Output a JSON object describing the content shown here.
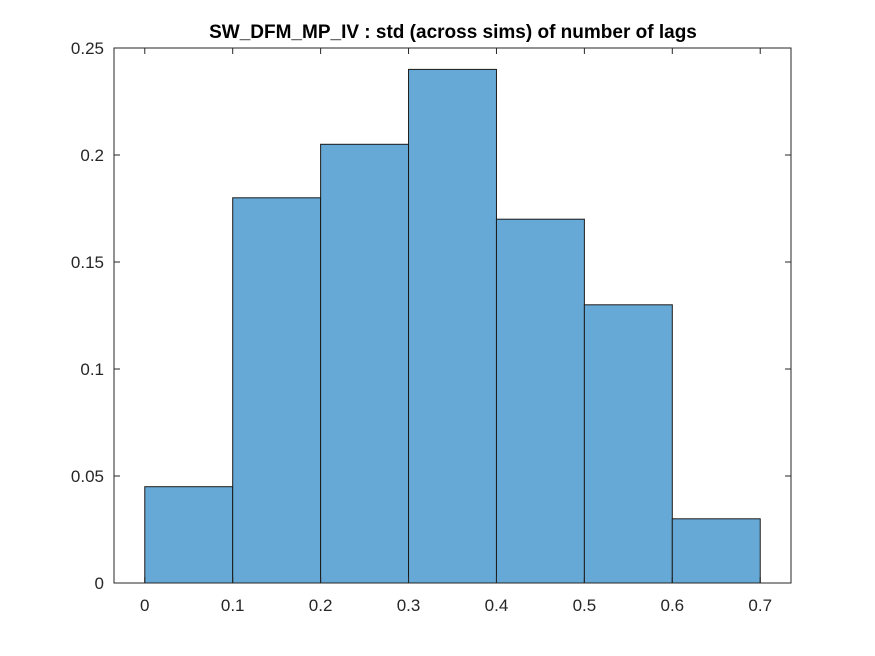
{
  "chart_data": {
    "type": "bar",
    "title": "SW_DFM_MP_IV : std (across sims) of number of lags",
    "xlabel": "",
    "ylabel": "",
    "bin_edges": [
      0,
      0.1,
      0.2,
      0.3,
      0.4,
      0.5,
      0.6,
      0.7
    ],
    "values": [
      0.045,
      0.18,
      0.205,
      0.24,
      0.17,
      0.13,
      0.03
    ],
    "xlim": [
      -0.035,
      0.735
    ],
    "ylim": [
      0,
      0.25
    ],
    "x_ticks": [
      0,
      0.1,
      0.2,
      0.3,
      0.4,
      0.5,
      0.6,
      0.7
    ],
    "x_tick_labels": [
      "0",
      "0.1",
      "0.2",
      "0.3",
      "0.4",
      "0.5",
      "0.6",
      "0.7"
    ],
    "y_ticks": [
      0,
      0.05,
      0.1,
      0.15,
      0.2,
      0.25
    ],
    "y_tick_labels": [
      "0",
      "0.05",
      "0.1",
      "0.15",
      "0.2",
      "0.25"
    ],
    "bar_color": "#67a9d6",
    "edge_color": "#1a1a1a",
    "grid": false,
    "box": true
  }
}
